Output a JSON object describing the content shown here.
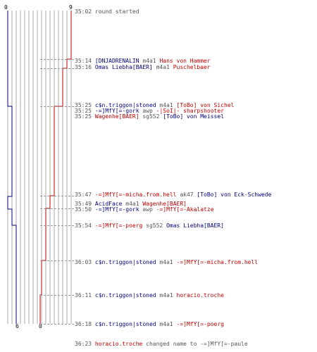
{
  "graph": {
    "blue_color": "#00007f",
    "red_color": "#bf0000",
    "top_left_score": "0",
    "top_right_score": "9",
    "bottom_blue_score": "6",
    "bottom_red_score": "0"
  },
  "events": [
    {
      "time": "35:02",
      "parts": [
        {
          "text": "round started",
          "c": "gray"
        }
      ]
    },
    {
      "time": "35:14",
      "parts": [
        {
          "text": "[DNJADRENALIN",
          "c": "blue"
        },
        {
          "text": " m4a1 ",
          "c": "gray"
        },
        {
          "text": "Hans von Hammer",
          "c": "red"
        }
      ]
    },
    {
      "time": "35:16",
      "parts": [
        {
          "text": "Omas Liebha[BAER]",
          "c": "blue"
        },
        {
          "text": " m4a1 ",
          "c": "gray"
        },
        {
          "text": "Puschelbaer",
          "c": "red"
        }
      ]
    },
    {
      "time": "35:25",
      "parts": [
        {
          "text": "c$n.triggon|stoned",
          "c": "blue"
        },
        {
          "text": " m4a1 ",
          "c": "gray"
        },
        {
          "text": "[ToBo] von Sichel",
          "c": "red"
        }
      ]
    },
    {
      "time": "35:25",
      "parts": [
        {
          "text": "-=]MfY[=-gork",
          "c": "blue"
        },
        {
          "text": " awp ",
          "c": "gray"
        },
        {
          "text": "-|SoI|- sharpshooter",
          "c": "red"
        }
      ]
    },
    {
      "time": "35:25",
      "parts": [
        {
          "text": "Wagenhe[BAER]",
          "c": "red"
        },
        {
          "text": " sg552 ",
          "c": "gray"
        },
        {
          "text": "[ToBo] von Meissel",
          "c": "blue"
        }
      ]
    },
    {
      "time": "35:47",
      "parts": [
        {
          "text": "-=]MfY[=-micha.from.hell",
          "c": "red"
        },
        {
          "text": " ak47 ",
          "c": "gray"
        },
        {
          "text": "[ToBo] von Eck-Schwede",
          "c": "blue"
        }
      ]
    },
    {
      "time": "35:49",
      "parts": [
        {
          "text": "AcidFace",
          "c": "blue"
        },
        {
          "text": " m4a1 ",
          "c": "gray"
        },
        {
          "text": "Wagenhe[BAER]",
          "c": "red"
        }
      ]
    },
    {
      "time": "35:50",
      "parts": [
        {
          "text": "-=]MfY[=-gork",
          "c": "blue"
        },
        {
          "text": " awp ",
          "c": "gray"
        },
        {
          "text": "-=]MfY[=-Akalatze",
          "c": "red"
        }
      ]
    },
    {
      "time": "35:54",
      "parts": [
        {
          "text": "-=]MfY[=-poerg",
          "c": "red"
        },
        {
          "text": " sg552 ",
          "c": "gray"
        },
        {
          "text": "Omas Liebha[BAER]",
          "c": "blue"
        }
      ]
    },
    {
      "time": "36:03",
      "parts": [
        {
          "text": "c$n.triggon|stoned",
          "c": "blue"
        },
        {
          "text": " m4a1 ",
          "c": "gray"
        },
        {
          "text": "-=]MfY[=-micha.from.hell",
          "c": "red"
        }
      ]
    },
    {
      "time": "36:11",
      "parts": [
        {
          "text": "c$n.triggon|stoned",
          "c": "blue"
        },
        {
          "text": " m4a1 ",
          "c": "gray"
        },
        {
          "text": "horacio.troche",
          "c": "red"
        }
      ]
    },
    {
      "time": "36:18",
      "parts": [
        {
          "text": "c$n.triggon|stoned",
          "c": "blue"
        },
        {
          "text": " m4a1 ",
          "c": "gray"
        },
        {
          "text": "-=]MfY[=-poerg",
          "c": "red"
        }
      ]
    },
    {
      "time": "36:23",
      "parts": [
        {
          "text": "horacio.troche",
          "c": "red"
        },
        {
          "text": " changed name to ",
          "c": "gray"
        },
        {
          "text": "-=]MfY[=-paule",
          "c": "gray"
        }
      ]
    }
  ]
}
